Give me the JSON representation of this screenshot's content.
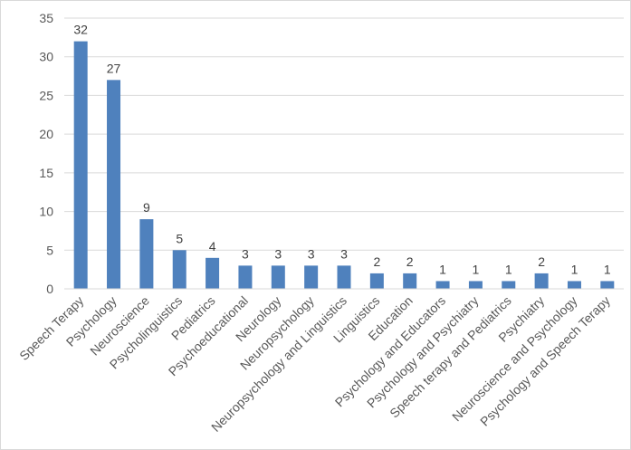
{
  "chart_data": {
    "type": "bar",
    "title": "",
    "xlabel": "",
    "ylabel": "",
    "categories": [
      "Speech Terapy",
      "Psychology",
      "Neuroscience",
      "Psycholinguistics",
      "Pediatrics",
      "Psychoeducational",
      "Neurology",
      "Neuropsychology",
      "Neuropsychology and Linguistics",
      "Linguistics",
      "Education",
      "Psychology and Educators",
      "Psychology and Psychiatry",
      "Speech terapy and Pediatrics",
      "Psychiatry",
      "Neuroscience and Psychology",
      "Psychology and Speech Terapy"
    ],
    "values": [
      32,
      27,
      9,
      5,
      4,
      3,
      3,
      3,
      3,
      2,
      2,
      1,
      1,
      1,
      2,
      1,
      1
    ],
    "ylim": [
      0,
      35
    ],
    "yticks": [
      0,
      5,
      10,
      15,
      20,
      25,
      30,
      35
    ],
    "grid": true,
    "legend": "none",
    "bar_color": "#4f81bd",
    "grid_color": "#d9d9d9"
  }
}
